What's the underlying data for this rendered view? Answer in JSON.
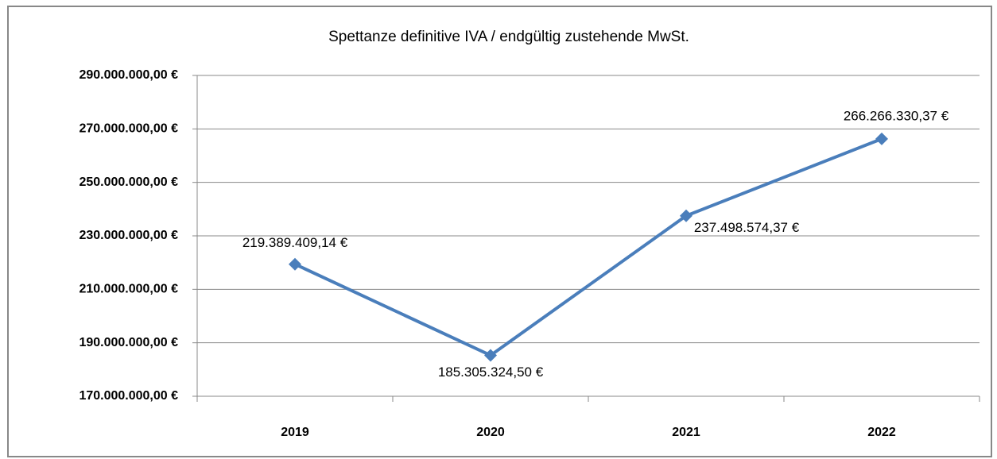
{
  "chart_data": {
    "type": "line",
    "title": "Spettanze definitive IVA / endgültig zustehende MwSt.",
    "categories": [
      "2019",
      "2020",
      "2021",
      "2022"
    ],
    "series": [
      {
        "name": "Spettanze definitive IVA",
        "color": "#4a7ebb",
        "values": [
          219389409.14,
          185305324.5,
          237498574.37,
          266266330.37
        ],
        "value_labels": [
          "219.389.409,14 €",
          "185.305.324,50 €",
          "237.498.574,37 €",
          "266.266.330,37 €"
        ]
      }
    ],
    "ylim": [
      170000000,
      290000000
    ],
    "yticks": [
      {
        "value": 170000000,
        "label": "170.000.000,00 €"
      },
      {
        "value": 190000000,
        "label": "190.000.000,00 €"
      },
      {
        "value": 210000000,
        "label": "210.000.000,00 €"
      },
      {
        "value": 230000000,
        "label": "230.000.000,00 €"
      },
      {
        "value": 250000000,
        "label": "250.000.000,00 €"
      },
      {
        "value": 270000000,
        "label": "270.000.000,00 €"
      },
      {
        "value": 290000000,
        "label": "290.000.000,00 €"
      }
    ],
    "grid": true
  }
}
